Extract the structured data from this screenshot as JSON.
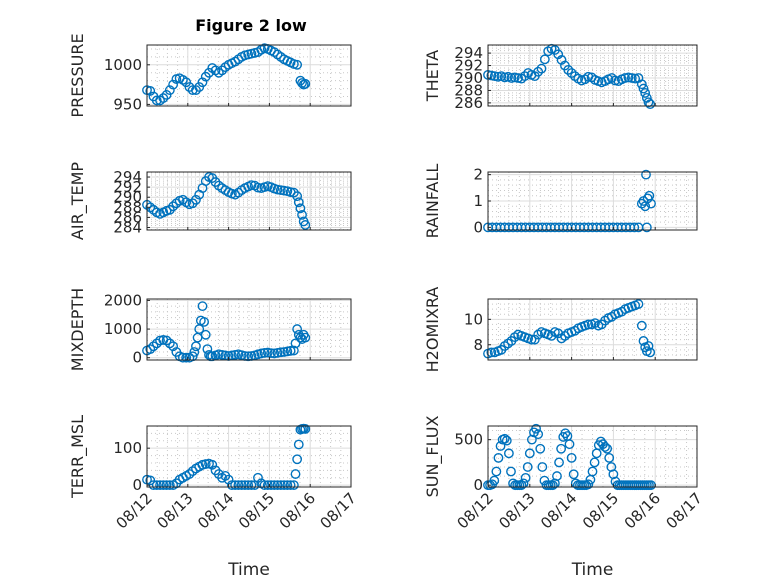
{
  "figure": {
    "title": "Figure 2 low",
    "marker_color": "#0072bd"
  },
  "chart_data": [
    {
      "type": "scatter",
      "name": "PRESSURE",
      "ylabel": "PRESSURE",
      "xlabel": "",
      "xlim": [
        0,
        5
      ],
      "ylim": [
        948,
        1025
      ],
      "yticks": [
        950,
        1000
      ],
      "xticks": [
        "08/12",
        "08/13",
        "08/14",
        "08/15",
        "08/16",
        "08/17"
      ],
      "xtick_visible": false,
      "grid": true,
      "x": [
        0.0,
        0.08,
        0.16,
        0.24,
        0.32,
        0.4,
        0.48,
        0.56,
        0.64,
        0.72,
        0.8,
        0.88,
        0.96,
        1.04,
        1.12,
        1.2,
        1.28,
        1.36,
        1.44,
        1.52,
        1.6,
        1.68,
        1.76,
        1.84,
        1.92,
        2.0,
        2.08,
        2.16,
        2.24,
        2.32,
        2.4,
        2.48,
        2.56,
        2.64,
        2.72,
        2.8,
        2.88,
        2.96,
        3.04,
        3.12,
        3.2,
        3.28,
        3.36,
        3.44,
        3.52,
        3.6,
        3.68,
        3.76,
        3.8,
        3.84,
        3.88
      ],
      "y": [
        968,
        967,
        960,
        955,
        955,
        958,
        962,
        968,
        975,
        982,
        983,
        981,
        978,
        972,
        968,
        968,
        972,
        978,
        985,
        990,
        996,
        993,
        990,
        993,
        997,
        1000,
        1002,
        1004,
        1007,
        1010,
        1012,
        1013,
        1014,
        1015,
        1016,
        1019,
        1021,
        1020,
        1018,
        1016,
        1013,
        1010,
        1007,
        1005,
        1003,
        1001,
        1000,
        980,
        977,
        975,
        976
      ]
    },
    {
      "type": "scatter",
      "name": "THETA",
      "ylabel": "THETA",
      "xlabel": "",
      "xlim": [
        0,
        5
      ],
      "ylim": [
        285.5,
        295.3
      ],
      "yticks": [
        286,
        288,
        290,
        292,
        294
      ],
      "xticks": [
        "08/12",
        "08/13",
        "08/14",
        "08/15",
        "08/16",
        "08/17"
      ],
      "xtick_visible": false,
      "grid": true,
      "x": [
        0.0,
        0.08,
        0.16,
        0.24,
        0.32,
        0.4,
        0.48,
        0.56,
        0.64,
        0.72,
        0.8,
        0.88,
        0.96,
        1.04,
        1.12,
        1.2,
        1.28,
        1.36,
        1.44,
        1.52,
        1.6,
        1.68,
        1.76,
        1.84,
        1.92,
        2.0,
        2.08,
        2.16,
        2.24,
        2.32,
        2.4,
        2.48,
        2.56,
        2.64,
        2.72,
        2.8,
        2.88,
        2.96,
        3.04,
        3.12,
        3.2,
        3.28,
        3.36,
        3.44,
        3.52,
        3.6,
        3.68,
        3.72,
        3.76,
        3.8,
        3.84,
        3.88
      ],
      "y": [
        290.5,
        290.4,
        290.3,
        290.2,
        290.3,
        290.1,
        290.2,
        290.0,
        290.1,
        290.0,
        289.9,
        290.3,
        290.8,
        290.5,
        290.3,
        291.0,
        291.5,
        293.0,
        294.3,
        294.7,
        294.5,
        293.8,
        292.9,
        292.0,
        291.3,
        290.8,
        290.3,
        289.9,
        289.6,
        289.8,
        290.2,
        290.1,
        289.7,
        289.5,
        289.3,
        289.5,
        289.8,
        290.0,
        289.6,
        289.5,
        289.8,
        290.0,
        290.1,
        290.0,
        289.9,
        290.0,
        289.0,
        288.3,
        287.6,
        286.8,
        286.1,
        285.8
      ]
    },
    {
      "type": "scatter",
      "name": "AIR_TEMP",
      "ylabel": "AIR_TEMP",
      "xlabel": "",
      "xlim": [
        0,
        5
      ],
      "ylim": [
        283.5,
        295.0
      ],
      "yticks": [
        284,
        286,
        288,
        290,
        292,
        294
      ],
      "xticks": [
        "08/12",
        "08/13",
        "08/14",
        "08/15",
        "08/16",
        "08/17"
      ],
      "xtick_visible": false,
      "grid": true,
      "x": [
        0.0,
        0.08,
        0.16,
        0.24,
        0.32,
        0.4,
        0.48,
        0.56,
        0.64,
        0.72,
        0.8,
        0.88,
        0.96,
        1.04,
        1.12,
        1.2,
        1.28,
        1.36,
        1.44,
        1.52,
        1.6,
        1.68,
        1.76,
        1.84,
        1.92,
        2.0,
        2.08,
        2.16,
        2.24,
        2.32,
        2.4,
        2.48,
        2.56,
        2.64,
        2.72,
        2.8,
        2.88,
        2.96,
        3.04,
        3.12,
        3.2,
        3.28,
        3.36,
        3.44,
        3.52,
        3.6,
        3.68,
        3.72,
        3.76,
        3.8,
        3.84,
        3.88
      ],
      "y": [
        288.5,
        288.0,
        287.5,
        287.0,
        286.7,
        287.0,
        287.3,
        287.5,
        288.2,
        288.8,
        289.3,
        289.5,
        289.0,
        288.6,
        288.8,
        289.5,
        290.5,
        291.8,
        293.2,
        294.0,
        293.8,
        293.0,
        292.3,
        291.8,
        291.4,
        291.0,
        290.7,
        290.5,
        290.9,
        291.4,
        291.8,
        292.1,
        292.4,
        292.3,
        291.9,
        291.8,
        292.0,
        292.2,
        292.0,
        291.7,
        291.5,
        291.4,
        291.3,
        291.2,
        291.0,
        290.9,
        290.2,
        289.0,
        287.8,
        286.5,
        285.2,
        284.5
      ]
    },
    {
      "type": "scatter",
      "name": "RAINFALL",
      "ylabel": "RAINFALL",
      "xlabel": "",
      "xlim": [
        0,
        5
      ],
      "ylim": [
        -0.1,
        2.1
      ],
      "yticks": [
        0,
        1,
        2
      ],
      "xticks": [
        "08/12",
        "08/13",
        "08/14",
        "08/15",
        "08/16",
        "08/17"
      ],
      "xtick_visible": false,
      "grid": true,
      "x": [
        0.0,
        0.1,
        0.2,
        0.3,
        0.4,
        0.5,
        0.6,
        0.7,
        0.8,
        0.9,
        1.0,
        1.1,
        1.2,
        1.3,
        1.4,
        1.5,
        1.6,
        1.7,
        1.8,
        1.9,
        2.0,
        2.1,
        2.2,
        2.3,
        2.4,
        2.5,
        2.6,
        2.7,
        2.8,
        2.9,
        3.0,
        3.1,
        3.2,
        3.3,
        3.4,
        3.5,
        3.6,
        3.68,
        3.72,
        3.76,
        3.78,
        3.8,
        3.82,
        3.86,
        3.9
      ],
      "y": [
        0,
        0,
        0,
        0,
        0,
        0,
        0,
        0,
        0,
        0,
        0,
        0,
        0,
        0,
        0,
        0,
        0,
        0,
        0,
        0,
        0,
        0,
        0,
        0,
        0,
        0,
        0,
        0,
        0,
        0,
        0,
        0,
        0,
        0,
        0,
        0,
        0,
        0.9,
        1.0,
        0.8,
        2.0,
        0.0,
        1.1,
        1.2,
        0.9
      ]
    },
    {
      "type": "scatter",
      "name": "MIXDEPTH",
      "ylabel": "MIXDEPTH",
      "xlabel": "",
      "xlim": [
        0,
        5
      ],
      "ylim": [
        -80,
        2050
      ],
      "yticks": [
        0,
        1000,
        2000
      ],
      "xticks": [
        "08/12",
        "08/13",
        "08/14",
        "08/15",
        "08/16",
        "08/17"
      ],
      "xtick_visible": false,
      "grid": true,
      "x": [
        0.0,
        0.08,
        0.16,
        0.24,
        0.32,
        0.4,
        0.48,
        0.56,
        0.64,
        0.72,
        0.8,
        0.88,
        0.96,
        1.04,
        1.12,
        1.16,
        1.2,
        1.24,
        1.28,
        1.32,
        1.36,
        1.4,
        1.44,
        1.48,
        1.52,
        1.56,
        1.6,
        1.68,
        1.76,
        1.84,
        1.92,
        2.0,
        2.08,
        2.16,
        2.24,
        2.32,
        2.4,
        2.48,
        2.56,
        2.64,
        2.72,
        2.8,
        2.88,
        2.96,
        3.04,
        3.12,
        3.2,
        3.28,
        3.36,
        3.44,
        3.52,
        3.6,
        3.64,
        3.68,
        3.72,
        3.76,
        3.8,
        3.84,
        3.88
      ],
      "y": [
        250,
        300,
        400,
        500,
        600,
        620,
        600,
        500,
        400,
        200,
        50,
        0,
        0,
        0,
        50,
        200,
        400,
        700,
        1000,
        1300,
        1800,
        1250,
        800,
        300,
        100,
        50,
        50,
        80,
        120,
        100,
        80,
        60,
        80,
        100,
        120,
        90,
        60,
        50,
        60,
        80,
        120,
        150,
        170,
        180,
        160,
        150,
        170,
        190,
        200,
        220,
        240,
        250,
        500,
        1000,
        800,
        700,
        650,
        800,
        700
      ]
    },
    {
      "type": "scatter",
      "name": "H2OMIXRA",
      "ylabel": "H2OMIXRA",
      "xlabel": "",
      "xlim": [
        0,
        5
      ],
      "ylim": [
        6.8,
        11.6
      ],
      "yticks": [
        8,
        10
      ],
      "xticks": [
        "08/12",
        "08/13",
        "08/14",
        "08/15",
        "08/16",
        "08/17"
      ],
      "xtick_visible": false,
      "grid": true,
      "x": [
        0.0,
        0.08,
        0.16,
        0.24,
        0.32,
        0.4,
        0.48,
        0.56,
        0.64,
        0.72,
        0.8,
        0.88,
        0.96,
        1.04,
        1.12,
        1.2,
        1.28,
        1.36,
        1.44,
        1.52,
        1.6,
        1.68,
        1.76,
        1.84,
        1.92,
        2.0,
        2.08,
        2.16,
        2.24,
        2.32,
        2.4,
        2.48,
        2.56,
        2.64,
        2.72,
        2.8,
        2.88,
        2.96,
        3.04,
        3.12,
        3.2,
        3.28,
        3.36,
        3.44,
        3.52,
        3.6,
        3.68,
        3.72,
        3.76,
        3.8,
        3.84,
        3.88
      ],
      "y": [
        7.3,
        7.4,
        7.4,
        7.5,
        7.6,
        7.9,
        8.1,
        8.3,
        8.6,
        8.8,
        8.7,
        8.6,
        8.5,
        8.4,
        8.4,
        8.8,
        9.0,
        8.9,
        8.8,
        8.7,
        9.0,
        8.9,
        8.5,
        8.7,
        8.9,
        9.0,
        9.1,
        9.3,
        9.4,
        9.5,
        9.6,
        9.6,
        9.7,
        9.5,
        9.6,
        9.9,
        10.1,
        10.2,
        10.4,
        10.5,
        10.6,
        10.8,
        10.9,
        11.0,
        11.1,
        11.2,
        9.5,
        8.3,
        7.8,
        7.5,
        7.9,
        7.4
      ]
    },
    {
      "type": "scatter",
      "name": "TERR_MSL",
      "ylabel": "TERR_MSL",
      "xlabel": "Time",
      "xlim": [
        0,
        5
      ],
      "ylim": [
        -5,
        160
      ],
      "yticks": [
        0,
        100
      ],
      "xticks": [
        "08/12",
        "08/13",
        "08/14",
        "08/15",
        "08/16",
        "08/17"
      ],
      "xtick_visible": true,
      "grid": true,
      "x": [
        0.0,
        0.08,
        0.16,
        0.24,
        0.32,
        0.4,
        0.48,
        0.56,
        0.64,
        0.72,
        0.8,
        0.88,
        0.96,
        1.04,
        1.12,
        1.2,
        1.28,
        1.36,
        1.44,
        1.52,
        1.6,
        1.68,
        1.76,
        1.84,
        1.92,
        2.0,
        2.08,
        2.16,
        2.24,
        2.32,
        2.4,
        2.48,
        2.56,
        2.64,
        2.72,
        2.8,
        2.88,
        2.96,
        3.04,
        3.12,
        3.2,
        3.28,
        3.36,
        3.44,
        3.52,
        3.6,
        3.64,
        3.68,
        3.72,
        3.76,
        3.8,
        3.84,
        3.88
      ],
      "y": [
        15,
        13,
        0,
        0,
        0,
        0,
        0,
        0,
        0,
        5,
        15,
        20,
        25,
        30,
        38,
        45,
        50,
        55,
        57,
        58,
        55,
        40,
        30,
        20,
        25,
        15,
        0,
        0,
        0,
        0,
        0,
        0,
        0,
        0,
        20,
        5,
        0,
        0,
        0,
        0,
        0,
        0,
        0,
        0,
        0,
        0,
        30,
        70,
        110,
        150,
        152,
        153,
        152
      ]
    },
    {
      "type": "scatter",
      "name": "SUN_FLUX",
      "ylabel": "SUN_FLUX",
      "xlabel": "Time",
      "xlim": [
        0,
        5
      ],
      "ylim": [
        -20,
        650
      ],
      "yticks": [
        0,
        500
      ],
      "xticks": [
        "08/12",
        "08/13",
        "08/14",
        "08/15",
        "08/16",
        "08/17"
      ],
      "xtick_visible": true,
      "grid": true,
      "x": [
        0.0,
        0.05,
        0.1,
        0.15,
        0.2,
        0.25,
        0.3,
        0.35,
        0.4,
        0.45,
        0.5,
        0.55,
        0.6,
        0.65,
        0.7,
        0.75,
        0.8,
        0.85,
        0.9,
        0.95,
        1.0,
        1.05,
        1.1,
        1.15,
        1.2,
        1.25,
        1.3,
        1.35,
        1.4,
        1.45,
        1.5,
        1.55,
        1.6,
        1.65,
        1.7,
        1.75,
        1.8,
        1.85,
        1.9,
        1.95,
        2.0,
        2.05,
        2.1,
        2.15,
        2.2,
        2.25,
        2.3,
        2.35,
        2.4,
        2.45,
        2.5,
        2.55,
        2.6,
        2.65,
        2.7,
        2.75,
        2.8,
        2.85,
        2.9,
        2.95,
        3.0,
        3.05,
        3.1,
        3.15,
        3.2,
        3.25,
        3.3,
        3.35,
        3.4,
        3.45,
        3.5,
        3.55,
        3.6,
        3.65,
        3.7,
        3.75,
        3.8,
        3.85,
        3.9
      ],
      "y": [
        0,
        0,
        10,
        50,
        150,
        300,
        430,
        500,
        510,
        490,
        350,
        150,
        20,
        0,
        0,
        0,
        0,
        20,
        80,
        200,
        350,
        500,
        580,
        620,
        560,
        400,
        200,
        50,
        0,
        0,
        0,
        0,
        20,
        100,
        250,
        400,
        530,
        570,
        540,
        450,
        300,
        120,
        20,
        0,
        0,
        0,
        0,
        0,
        10,
        60,
        150,
        250,
        350,
        440,
        480,
        450,
        420,
        400,
        300,
        200,
        120,
        40,
        0,
        0,
        0,
        0,
        0,
        0,
        0,
        0,
        0,
        0,
        0,
        0,
        0,
        0,
        0,
        0,
        0
      ]
    }
  ]
}
